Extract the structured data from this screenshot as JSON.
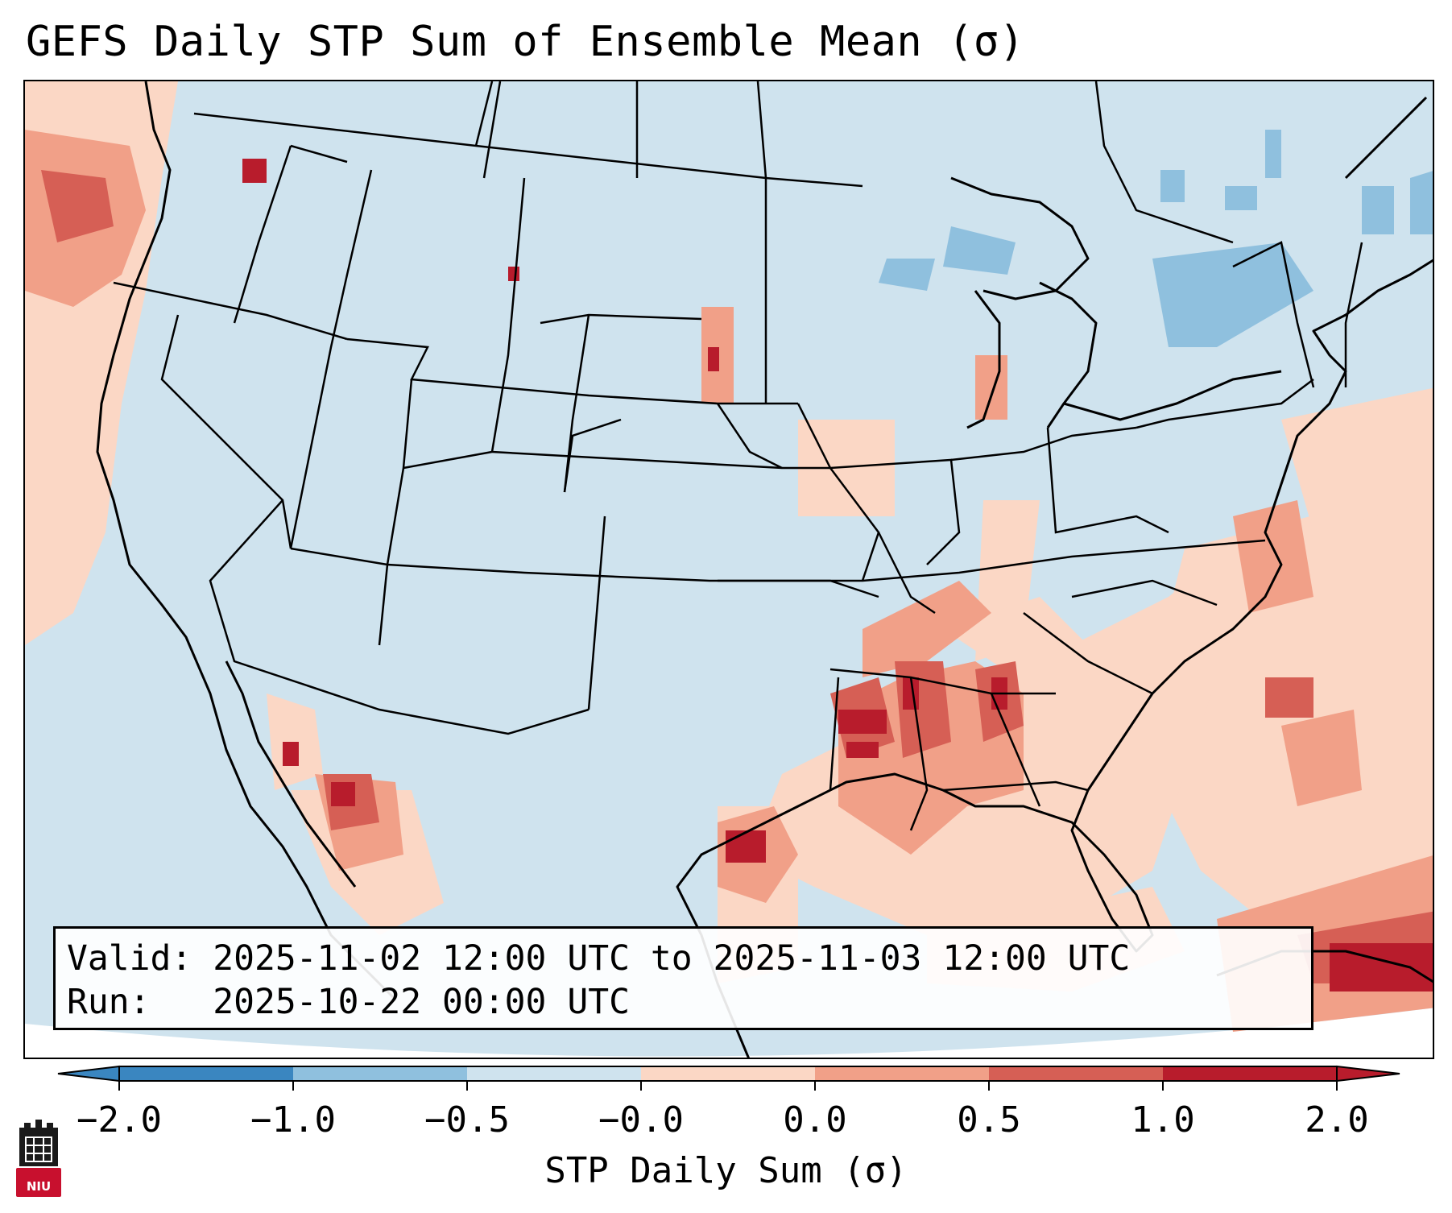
{
  "title": "GEFS Daily STP Sum of Ensemble Mean (σ)",
  "info": {
    "valid_label": "Valid:",
    "valid_value": "2025-11-02 12:00 UTC to 2025-11-03 12:00 UTC",
    "run_label": "Run:",
    "run_value": "2025-10-22 00:00 UTC"
  },
  "colorbar": {
    "label": "STP Daily Sum (σ)",
    "ticks": [
      "−2.0",
      "−1.0",
      "−0.5",
      "−0.0",
      "0.0",
      "0.5",
      "1.0",
      "2.0"
    ],
    "colors": [
      "#3a86c0",
      "#8fc0de",
      "#cfe3ee",
      "#f8f8f8",
      "#fbd7c5",
      "#f1a088",
      "#d65f55",
      "#b81c2c"
    ],
    "background_color": "#cfe3ee"
  },
  "logo": {
    "text": "NIU",
    "color": "#c8102e"
  },
  "map_data": {
    "projection": "Lambert Conformal (CONUS)",
    "color_scale_min": -2.0,
    "color_scale_max": 2.0,
    "highlighted_regions": [
      "Pacific Northwest coast",
      "Lower Mississippi Valley",
      "Gulf Coast",
      "Southeast US",
      "Western Atlantic",
      "Gulf of California",
      "Caribbean (Cuba)"
    ]
  }
}
